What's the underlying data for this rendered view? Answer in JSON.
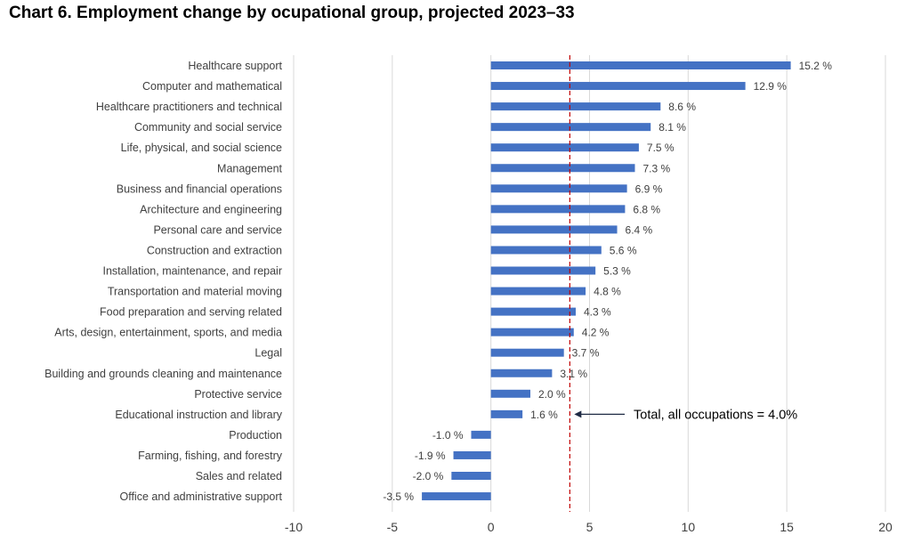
{
  "chart_data": {
    "type": "bar",
    "orientation": "horizontal",
    "title": "Chart 6. Employment change by ocupational group, projected 2023–33",
    "xlabel": "",
    "ylabel": "",
    "xlim": [
      -10,
      20
    ],
    "xticks": [
      -10,
      -5,
      0,
      5,
      10,
      15,
      20
    ],
    "grid": "vertical",
    "value_suffix": " %",
    "bar_color": "#4472c4",
    "categories": [
      "Healthcare support",
      "Computer and mathematical",
      "Healthcare practitioners and technical",
      "Community and social service",
      "Life, physical, and social science",
      "Management",
      "Business and financial operations",
      "Architecture and engineering",
      "Personal care and service",
      "Construction and extraction",
      "Installation, maintenance, and repair",
      "Transportation and material moving",
      "Food preparation and serving related",
      "Arts, design, entertainment, sports, and media",
      "Legal",
      "Building and grounds cleaning and maintenance",
      "Protective service",
      "Educational instruction and library",
      "Production",
      "Farming, fishing, and forestry",
      "Sales and related",
      "Office and administrative support"
    ],
    "values": [
      15.2,
      12.9,
      8.6,
      8.1,
      7.5,
      7.3,
      6.9,
      6.8,
      6.4,
      5.6,
      5.3,
      4.8,
      4.3,
      4.2,
      3.7,
      3.1,
      2.0,
      1.6,
      -1.0,
      -1.9,
      -2.0,
      -3.5
    ],
    "reference_line": {
      "value": 4.0,
      "color": "#c00000",
      "style": "dashed",
      "label": "Total, all occupations = 4.0%"
    }
  }
}
